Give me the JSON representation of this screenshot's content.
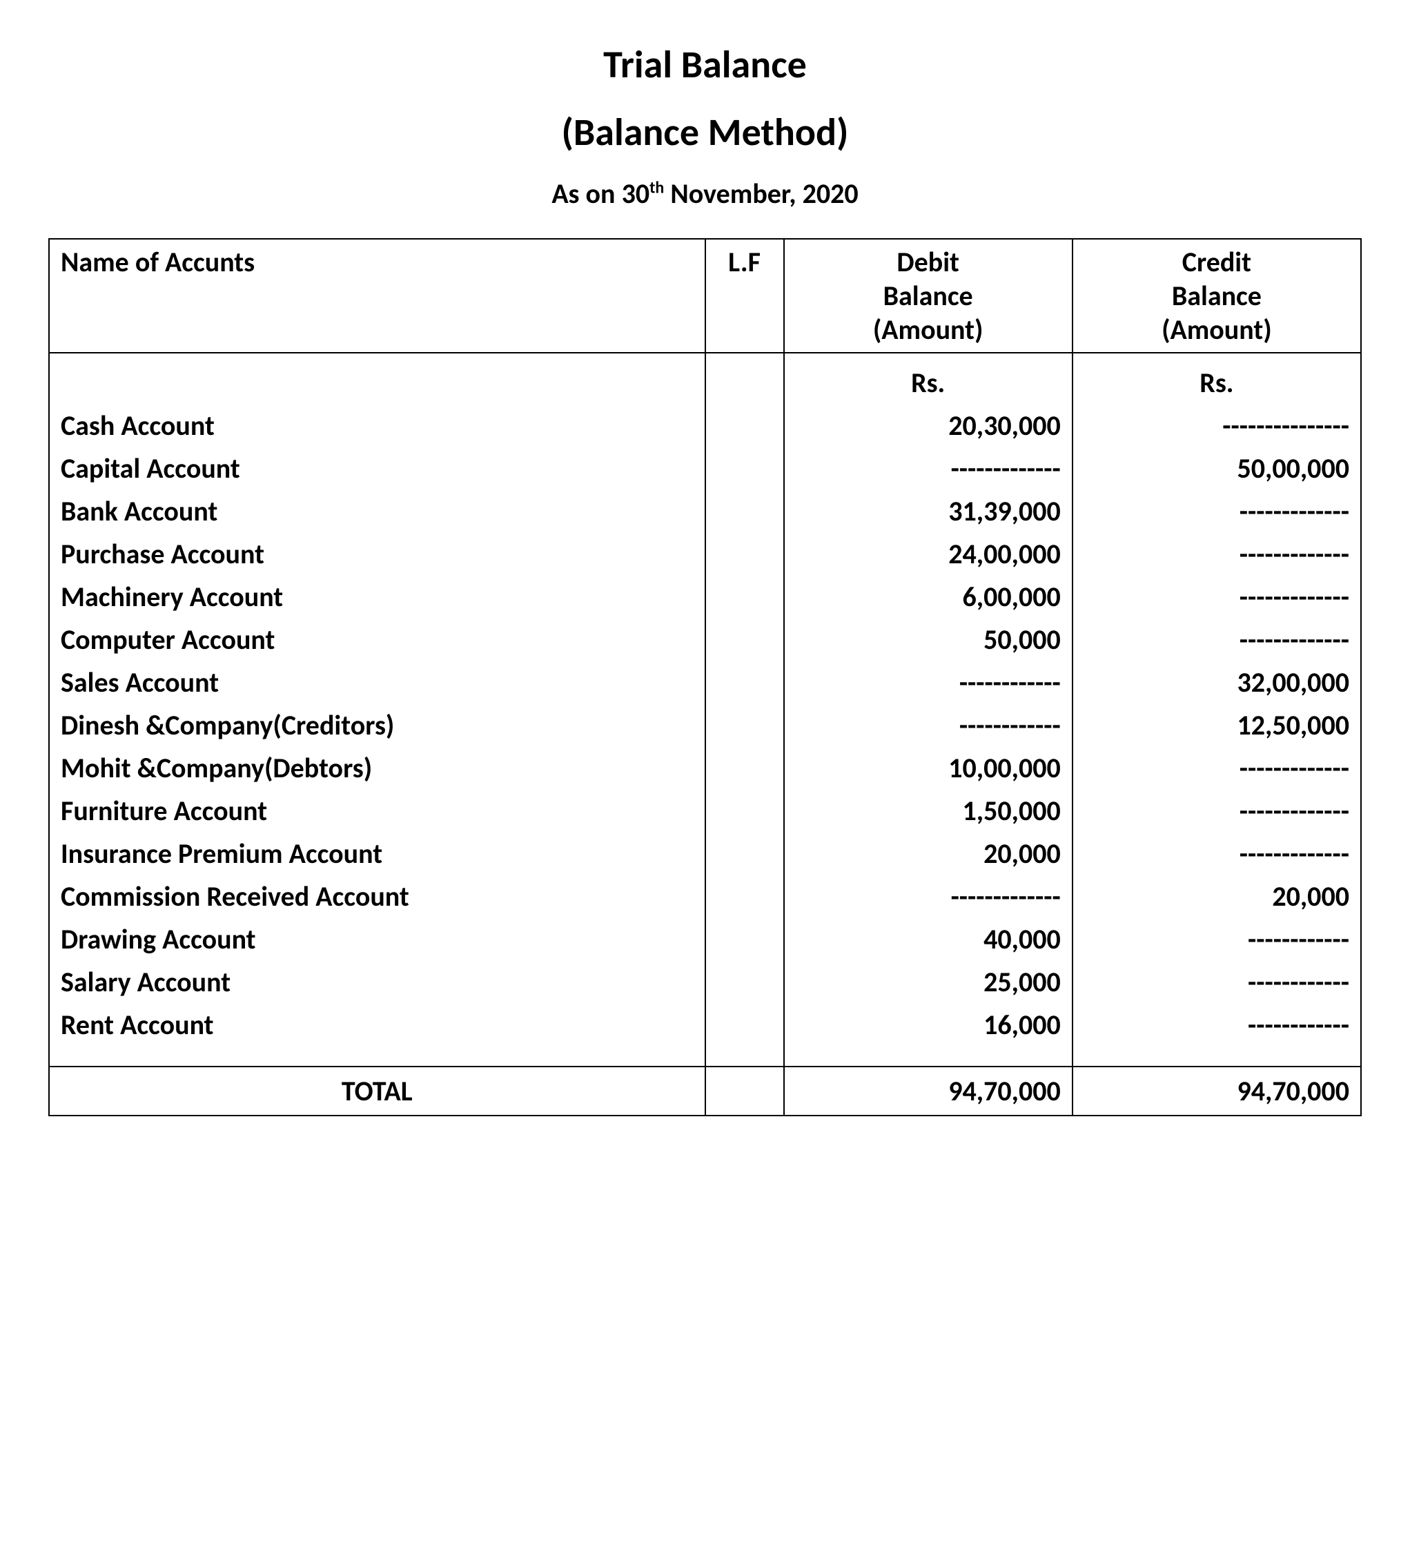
{
  "header": {
    "title": "Trial Balance",
    "subtitle": "(Balance Method)",
    "date_prefix": "As on 30",
    "date_ord": "th",
    "date_suffix": " November, 2020"
  },
  "table": {
    "columns": {
      "name": "Name of Accunts",
      "lf": "L.F",
      "debit_l1": "Debit",
      "debit_l2": "Balance",
      "debit_l3": "(Amount)",
      "credit_l1": "Credit",
      "credit_l2": "Balance",
      "credit_l3": "(Amount)"
    },
    "currency": "Rs.",
    "rows": [
      {
        "name": "Cash Account",
        "debit": "20,30,000",
        "credit": "---------------"
      },
      {
        "name": "Capital Account",
        "debit": "-------------",
        "credit": "50,00,000"
      },
      {
        "name": "Bank Account",
        "debit": "31,39,000",
        "credit": "-------------"
      },
      {
        "name": "Purchase Account",
        "debit": "24,00,000",
        "credit": "-------------"
      },
      {
        "name": "Machinery Account",
        "debit": "6,00,000",
        "credit": "-------------"
      },
      {
        "name": "Computer Account",
        "debit": "50,000",
        "credit": "-------------"
      },
      {
        "name": "Sales Account",
        "debit": "------------",
        "credit": "32,00,000"
      },
      {
        "name": "Dinesh &Company(Creditors)",
        "debit": "------------",
        "credit": "12,50,000"
      },
      {
        "name": "Mohit &Company(Debtors)",
        "debit": "10,00,000",
        "credit": "-------------"
      },
      {
        "name": "Furniture Account",
        "debit": "1,50,000",
        "credit": "-------------"
      },
      {
        "name": "Insurance Premium Account",
        "debit": "20,000",
        "credit": "-------------"
      },
      {
        "name": "Commission Received Account",
        "debit": "-------------",
        "credit": "20,000"
      },
      {
        "name": "Drawing Account",
        "debit": "40,000",
        "credit": "------------"
      },
      {
        "name": "Salary Account",
        "debit": "25,000",
        "credit": "------------"
      },
      {
        "name": "Rent Account",
        "debit": "16,000",
        "credit": "------------"
      }
    ],
    "total": {
      "label": "TOTAL",
      "debit": "94,70,000",
      "credit": "94,70,000"
    }
  },
  "style": {
    "background_color": "#ffffff",
    "text_color": "#000000",
    "border_color": "#000000",
    "title_fontsize": 56,
    "body_fontsize": 40,
    "font_weight": "bold"
  }
}
